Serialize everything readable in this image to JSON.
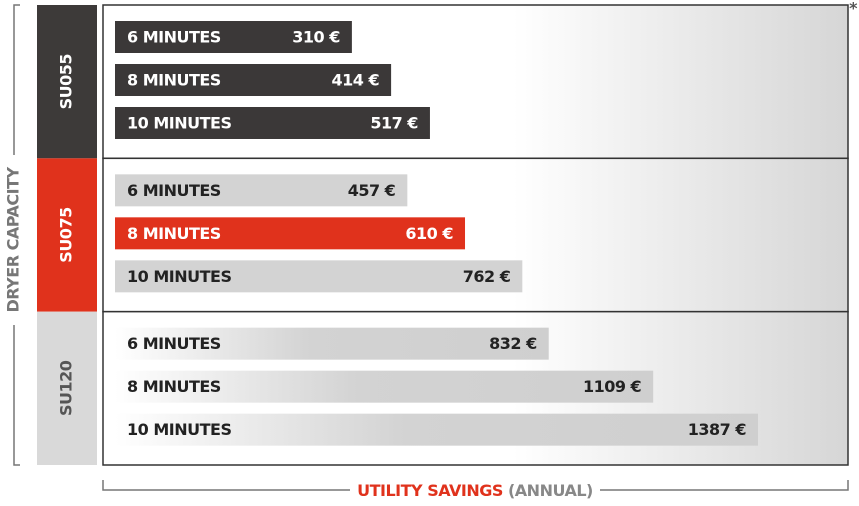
{
  "chart_data": {
    "type": "bar",
    "note": "*",
    "y_label": "DRYER CAPACITY",
    "x_label": "UTILITY SAVINGS",
    "x_label_suffix": "(ANNUAL)",
    "categories": [
      "6 MINUTES",
      "8 MINUTES",
      "10 MINUTES"
    ],
    "series": [
      {
        "name": "SU055",
        "color": "#3d3a39",
        "colors": [
          "#3b3838",
          "#3b3838",
          "#3b3838"
        ],
        "values": [
          310,
          414,
          517
        ],
        "value_labels": [
          "310 €",
          "414 €",
          "517 €"
        ]
      },
      {
        "name": "SU075",
        "color": "#e0321c",
        "colors": [
          "#d3d3d3",
          "#e0321c",
          "#d3d3d3"
        ],
        "values": [
          457,
          610,
          762
        ],
        "value_labels": [
          "457 €",
          "610 €",
          "762 €"
        ]
      },
      {
        "name": "SU120",
        "color": "#d9d9d9",
        "colors": [
          "gradient",
          "gradient",
          "gradient"
        ],
        "values": [
          832,
          1109,
          1387
        ],
        "value_labels": [
          "832 €",
          "1109 €",
          "1387 €"
        ]
      }
    ]
  }
}
